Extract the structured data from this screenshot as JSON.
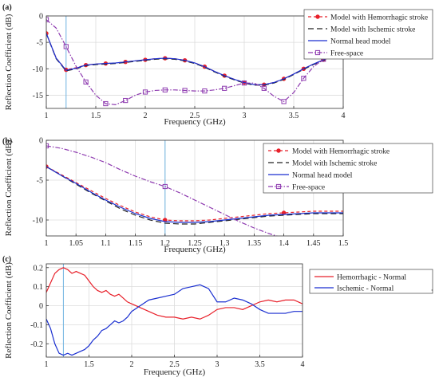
{
  "chart_data": [
    {
      "type": "line",
      "panel_label": "(a)",
      "xlabel": "Frequency (GHz)",
      "ylabel": "Reflection Coefficient (dB)",
      "xlim": [
        1,
        4
      ],
      "ylim": [
        -17.5,
        0
      ],
      "xticks": [
        1,
        1.5,
        2,
        2.5,
        3,
        3.5,
        4
      ],
      "xtick_labels": [
        "1",
        "1.5",
        "2",
        "2.5",
        "3",
        "3.5",
        "4"
      ],
      "yticks": [
        0,
        -5,
        -10,
        -15
      ],
      "ytick_labels": [
        "0",
        "-5",
        "-10",
        "-15"
      ],
      "grid": true,
      "legend": "outside-right",
      "marker_line": {
        "x": 1.2,
        "color": "#6fb3e0"
      },
      "series": [
        {
          "name": "Model with Hemorrhagic stroke",
          "color": "#e8202a",
          "dash": "4,3",
          "marker": "dot",
          "x": [
            1,
            1.1,
            1.2,
            1.3,
            1.4,
            1.5,
            1.6,
            1.7,
            1.8,
            1.9,
            2.0,
            2.1,
            2.2,
            2.3,
            2.4,
            2.5,
            2.6,
            2.7,
            2.8,
            2.9,
            3.0,
            3.1,
            3.2,
            3.3,
            3.4,
            3.5,
            3.6,
            3.7,
            3.8,
            3.9,
            4.0
          ],
          "y": [
            -3.3,
            -8.0,
            -10.2,
            -9.8,
            -9.3,
            -9.1,
            -9.0,
            -8.9,
            -8.7,
            -8.5,
            -8.3,
            -8.1,
            -8.0,
            -8.1,
            -8.4,
            -8.9,
            -9.6,
            -10.5,
            -11.3,
            -12.0,
            -12.6,
            -13.0,
            -13.0,
            -12.6,
            -11.9,
            -11.0,
            -10.0,
            -9.1,
            -8.3,
            -7.6,
            -7.1
          ],
          "marker_x": [
            1,
            1.2,
            1.4,
            1.6,
            1.8,
            2.0,
            2.2,
            2.4,
            2.6,
            2.8,
            3.0,
            3.2,
            3.4,
            3.6,
            3.8,
            4.0
          ]
        },
        {
          "name": "Model with Ischemic stroke",
          "color": "#222222",
          "dash": "7,4",
          "marker": "none",
          "x": [
            1,
            1.1,
            1.2,
            1.3,
            1.4,
            1.5,
            1.6,
            1.7,
            1.8,
            1.9,
            2.0,
            2.1,
            2.2,
            2.3,
            2.4,
            2.5,
            2.6,
            2.7,
            2.8,
            2.9,
            3.0,
            3.1,
            3.2,
            3.3,
            3.4,
            3.5,
            3.6,
            3.7,
            3.8,
            3.9,
            4.0
          ],
          "y": [
            -3.3,
            -8.1,
            -10.4,
            -10.0,
            -9.4,
            -9.2,
            -9.1,
            -9.0,
            -8.8,
            -8.6,
            -8.4,
            -8.2,
            -8.1,
            -8.2,
            -8.5,
            -9.0,
            -9.7,
            -10.6,
            -11.4,
            -12.1,
            -12.7,
            -13.1,
            -13.1,
            -12.7,
            -12.0,
            -11.1,
            -10.1,
            -9.2,
            -8.4,
            -7.7,
            -7.2
          ]
        },
        {
          "name": "Normal head model",
          "color": "#1a2fd0",
          "dash": "",
          "marker": "none",
          "x": [
            1,
            1.1,
            1.2,
            1.3,
            1.4,
            1.5,
            1.6,
            1.7,
            1.8,
            1.9,
            2.0,
            2.1,
            2.2,
            2.3,
            2.4,
            2.5,
            2.6,
            2.7,
            2.8,
            2.9,
            3.0,
            3.1,
            3.2,
            3.3,
            3.4,
            3.5,
            3.6,
            3.7,
            3.8,
            3.9,
            4.0
          ],
          "y": [
            -3.3,
            -8.0,
            -10.3,
            -9.9,
            -9.3,
            -9.1,
            -9.0,
            -8.9,
            -8.7,
            -8.5,
            -8.3,
            -8.1,
            -8.0,
            -8.1,
            -8.4,
            -8.9,
            -9.6,
            -10.5,
            -11.3,
            -12.0,
            -12.6,
            -13.0,
            -13.0,
            -12.6,
            -11.9,
            -11.0,
            -10.0,
            -9.1,
            -8.3,
            -7.6,
            -7.1
          ]
        },
        {
          "name": "Free-space",
          "color": "#8e3bb0",
          "dash": "6,2,1.5,2",
          "marker": "square",
          "x": [
            1,
            1.1,
            1.2,
            1.3,
            1.4,
            1.5,
            1.6,
            1.7,
            1.8,
            1.9,
            2.0,
            2.1,
            2.2,
            2.3,
            2.4,
            2.5,
            2.6,
            2.7,
            2.8,
            2.9,
            3.0,
            3.1,
            3.2,
            3.3,
            3.4,
            3.5,
            3.6,
            3.7,
            3.8,
            3.9,
            4.0
          ],
          "y": [
            -0.7,
            -2.3,
            -5.8,
            -9.5,
            -12.5,
            -15.0,
            -16.6,
            -16.8,
            -16.0,
            -15.0,
            -14.4,
            -14.1,
            -14.0,
            -14.0,
            -14.1,
            -14.2,
            -14.2,
            -14.0,
            -13.7,
            -13.2,
            -12.7,
            -12.7,
            -13.7,
            -15.2,
            -16.2,
            -14.5,
            -11.8,
            -9.6,
            -8.2,
            -7.5,
            -7.2
          ],
          "marker_x": [
            1,
            1.2,
            1.4,
            1.6,
            1.8,
            2.0,
            2.2,
            2.4,
            2.6,
            2.8,
            3.0,
            3.2,
            3.4,
            3.6,
            3.8,
            4.0
          ]
        }
      ]
    },
    {
      "type": "line",
      "panel_label": "(b)",
      "xlabel": "Frequency (GHz)",
      "ylabel": "Reflection Coefficient (dB)",
      "xlim": [
        1,
        1.5
      ],
      "ylim": [
        -12,
        0
      ],
      "xticks": [
        1,
        1.05,
        1.1,
        1.15,
        1.2,
        1.25,
        1.3,
        1.35,
        1.4,
        1.45,
        1.5
      ],
      "xtick_labels": [
        "1",
        "1.05",
        "1.1",
        "1.15",
        "1.2",
        "1.25",
        "1.3",
        "1.35",
        "1.4",
        "1.45",
        "1.5"
      ],
      "yticks": [
        0,
        -5,
        -10
      ],
      "ytick_labels": [
        "0",
        "-5",
        "-10"
      ],
      "grid": true,
      "legend": "inside-top-right",
      "marker_line": {
        "x": 1.2,
        "color": "#6fb3e0"
      },
      "series": [
        {
          "name": "Model with Hemorrhagic stroke",
          "color": "#e8202a",
          "dash": "4,3",
          "marker": "dot",
          "x": [
            1,
            1.025,
            1.05,
            1.075,
            1.1,
            1.125,
            1.15,
            1.175,
            1.2,
            1.225,
            1.25,
            1.275,
            1.3,
            1.325,
            1.35,
            1.375,
            1.4,
            1.425,
            1.45,
            1.475,
            1.5
          ],
          "y": [
            -3.3,
            -4.3,
            -5.3,
            -6.3,
            -7.3,
            -8.2,
            -9.0,
            -9.6,
            -10.0,
            -10.1,
            -10.1,
            -10.0,
            -9.8,
            -9.6,
            -9.4,
            -9.2,
            -9.1,
            -9.0,
            -8.9,
            -8.9,
            -8.9
          ],
          "marker_x": [
            1,
            1.2,
            1.4
          ]
        },
        {
          "name": "Model with Ischemic stroke",
          "color": "#222222",
          "dash": "7,4",
          "marker": "none",
          "x": [
            1,
            1.025,
            1.05,
            1.075,
            1.1,
            1.125,
            1.15,
            1.175,
            1.2,
            1.225,
            1.25,
            1.275,
            1.3,
            1.325,
            1.35,
            1.375,
            1.4,
            1.425,
            1.45,
            1.475,
            1.5
          ],
          "y": [
            -3.3,
            -4.4,
            -5.5,
            -6.6,
            -7.6,
            -8.6,
            -9.4,
            -10.0,
            -10.4,
            -10.5,
            -10.5,
            -10.3,
            -10.1,
            -9.9,
            -9.7,
            -9.5,
            -9.4,
            -9.3,
            -9.2,
            -9.2,
            -9.2
          ]
        },
        {
          "name": "Normal head model",
          "color": "#1a2fd0",
          "dash": "",
          "marker": "none",
          "x": [
            1,
            1.025,
            1.05,
            1.075,
            1.1,
            1.125,
            1.15,
            1.175,
            1.2,
            1.225,
            1.25,
            1.275,
            1.3,
            1.325,
            1.35,
            1.375,
            1.4,
            1.425,
            1.45,
            1.475,
            1.5
          ],
          "y": [
            -3.3,
            -4.4,
            -5.4,
            -6.5,
            -7.5,
            -8.4,
            -9.2,
            -9.8,
            -10.2,
            -10.3,
            -10.3,
            -10.2,
            -10.0,
            -9.8,
            -9.6,
            -9.4,
            -9.3,
            -9.2,
            -9.1,
            -9.1,
            -9.1
          ]
        },
        {
          "name": "Free-space",
          "color": "#8e3bb0",
          "dash": "6,2,1.5,2",
          "marker": "square",
          "x": [
            1,
            1.025,
            1.05,
            1.075,
            1.1,
            1.125,
            1.15,
            1.175,
            1.2,
            1.225,
            1.25,
            1.275,
            1.3,
            1.325,
            1.35,
            1.375,
            1.4
          ],
          "y": [
            -0.7,
            -1.0,
            -1.5,
            -2.1,
            -2.8,
            -3.7,
            -4.5,
            -5.2,
            -5.8,
            -6.6,
            -7.5,
            -8.4,
            -9.3,
            -10.2,
            -11.0,
            -11.7,
            -12.3
          ],
          "marker_x": [
            1,
            1.2
          ]
        }
      ]
    },
    {
      "type": "line",
      "panel_label": "(c)",
      "xlabel": "Frequency (GHz)",
      "ylabel": "Reflection Coefficient (dB)",
      "xlim": [
        1,
        4
      ],
      "ylim": [
        -0.27,
        0.22
      ],
      "xticks": [
        1,
        1.5,
        2,
        2.5,
        3,
        3.5,
        4
      ],
      "xtick_labels": [
        "1",
        "1.5",
        "2",
        "2.5",
        "3",
        "3.5",
        "4"
      ],
      "yticks": [
        0.2,
        0.1,
        0,
        -0.1,
        -0.2
      ],
      "ytick_labels": [
        "0.2",
        "0.1",
        "0",
        "-0.1",
        "-0.2"
      ],
      "grid": true,
      "legend": "outside-right",
      "marker_line": {
        "x": 1.2,
        "color": "#6fb3e0"
      },
      "legend_extra": ".",
      "series": [
        {
          "name": "Hemorrhagic - Normal",
          "color": "#e8202a",
          "dash": "",
          "marker": "none",
          "x": [
            1.0,
            1.05,
            1.1,
            1.15,
            1.2,
            1.25,
            1.3,
            1.35,
            1.4,
            1.45,
            1.5,
            1.55,
            1.6,
            1.65,
            1.7,
            1.75,
            1.8,
            1.85,
            1.9,
            1.95,
            2.0,
            2.1,
            2.2,
            2.3,
            2.4,
            2.5,
            2.6,
            2.7,
            2.8,
            2.9,
            3.0,
            3.1,
            3.2,
            3.3,
            3.4,
            3.5,
            3.6,
            3.7,
            3.8,
            3.9,
            4.0
          ],
          "y": [
            0.07,
            0.12,
            0.17,
            0.19,
            0.2,
            0.19,
            0.17,
            0.18,
            0.17,
            0.16,
            0.13,
            0.1,
            0.08,
            0.07,
            0.08,
            0.06,
            0.05,
            0.06,
            0.04,
            0.02,
            0.01,
            -0.01,
            -0.03,
            -0.05,
            -0.06,
            -0.06,
            -0.07,
            -0.06,
            -0.07,
            -0.05,
            -0.02,
            -0.01,
            -0.01,
            -0.02,
            0.0,
            0.02,
            0.03,
            0.02,
            0.03,
            0.03,
            0.01
          ]
        },
        {
          "name": "Ischemic - Normal",
          "color": "#1a2fd0",
          "dash": "",
          "marker": "none",
          "x": [
            1.0,
            1.05,
            1.1,
            1.15,
            1.2,
            1.25,
            1.3,
            1.35,
            1.4,
            1.45,
            1.5,
            1.55,
            1.6,
            1.65,
            1.7,
            1.75,
            1.8,
            1.85,
            1.9,
            1.95,
            2.0,
            2.1,
            2.2,
            2.3,
            2.4,
            2.5,
            2.6,
            2.7,
            2.8,
            2.9,
            3.0,
            3.1,
            3.2,
            3.3,
            3.4,
            3.5,
            3.6,
            3.7,
            3.8,
            3.9,
            4.0
          ],
          "y": [
            -0.07,
            -0.12,
            -0.2,
            -0.25,
            -0.26,
            -0.25,
            -0.26,
            -0.25,
            -0.24,
            -0.23,
            -0.21,
            -0.18,
            -0.16,
            -0.13,
            -0.12,
            -0.1,
            -0.08,
            -0.09,
            -0.08,
            -0.06,
            -0.03,
            0.0,
            0.03,
            0.04,
            0.05,
            0.06,
            0.09,
            0.1,
            0.11,
            0.09,
            0.02,
            0.02,
            0.04,
            0.03,
            0.01,
            -0.02,
            -0.04,
            -0.04,
            -0.04,
            -0.03,
            -0.03
          ]
        }
      ]
    }
  ]
}
